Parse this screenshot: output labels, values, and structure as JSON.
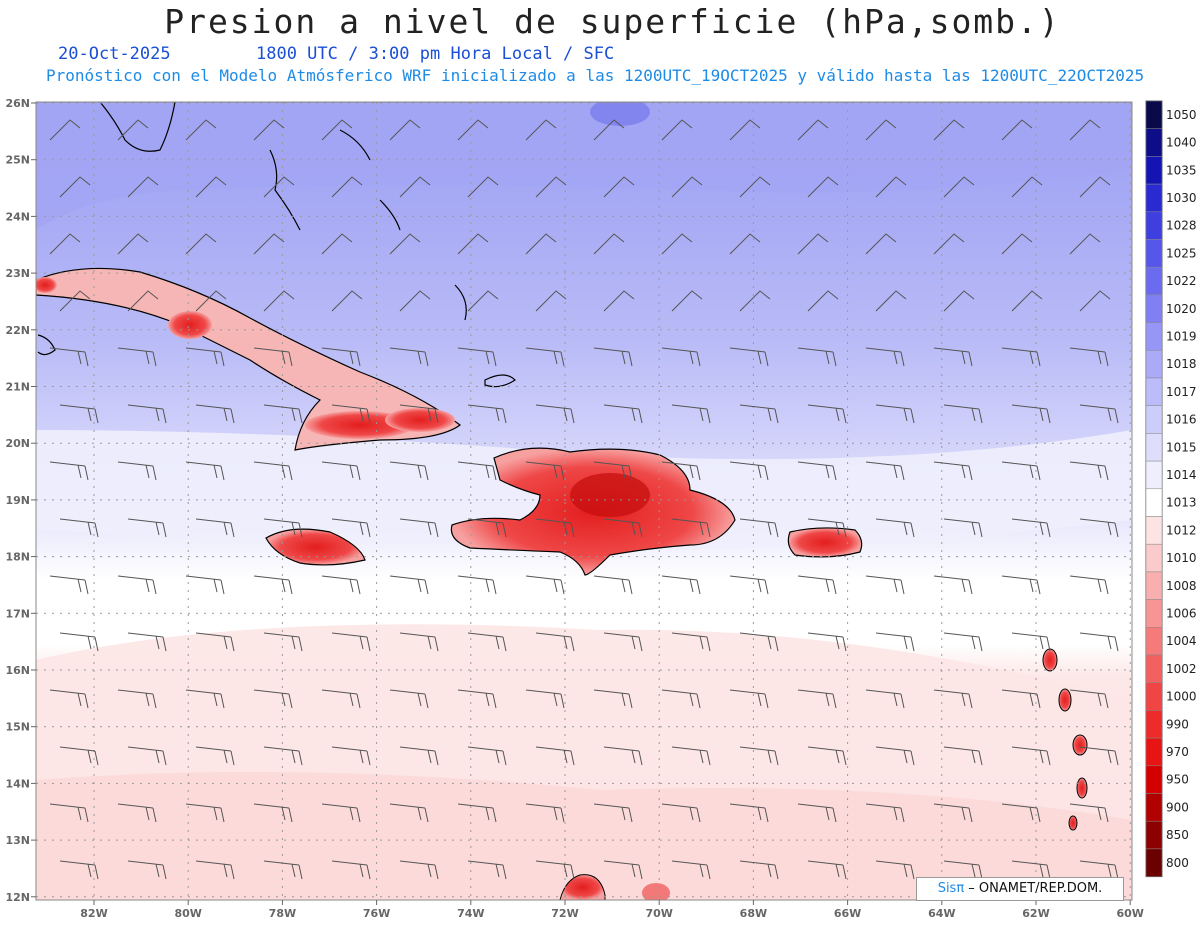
{
  "header": {
    "title": "Presion a nivel de superficie (hPa,somb.)",
    "date": "20-Oct-2025",
    "time_info": "1800 UTC / 3:00 pm Hora Local / SFC",
    "model_info": "Pronóstico con el Modelo Atmósferico WRF inicializado a las 1200UTC_19OCT2025 y válido hasta las  1200UTC_22OCT2025"
  },
  "map": {
    "lat_labels": [
      "26N",
      "25N",
      "24N",
      "23N",
      "22N",
      "21N",
      "20N",
      "19N",
      "18N",
      "17N",
      "16N",
      "15N",
      "14N",
      "13N",
      "12N"
    ],
    "lon_labels": [
      "82W",
      "80W",
      "78W",
      "76W",
      "74W",
      "72W",
      "70W",
      "68W",
      "66W",
      "64W",
      "62W",
      "60W"
    ],
    "high_pressure_color": "#a9acf5",
    "low_pressure_color": "#e8262a"
  },
  "colorbar": {
    "labels": [
      "1050",
      "1040",
      "1035",
      "1030",
      "1028",
      "1025",
      "1022",
      "1020",
      "1019",
      "1018",
      "1017",
      "1016",
      "1015",
      "1014",
      "1013",
      "1012",
      "1010",
      "1008",
      "1006",
      "1004",
      "1002",
      "1000",
      "990",
      "970",
      "950",
      "900",
      "850",
      "800"
    ],
    "colors": [
      "#0a0a4a",
      "#0d0d8a",
      "#1414b4",
      "#2a2ad2",
      "#3f3fe0",
      "#5656ea",
      "#6b6bf0",
      "#8080f4",
      "#9696f6",
      "#aaaaf8",
      "#bcbcfa",
      "#cdcdfb",
      "#dedefc",
      "#eeeefd",
      "#ffffff",
      "#fde4e4",
      "#fbcaca",
      "#f9afaf",
      "#f79494",
      "#f57a7a",
      "#f26060",
      "#f04545",
      "#ee2b2b",
      "#e81414",
      "#d40000",
      "#b00000",
      "#8c0000",
      "#6a0000"
    ]
  },
  "credit": {
    "brand": "Sisπ",
    "text": " – ONAMET/REP.DOM."
  }
}
